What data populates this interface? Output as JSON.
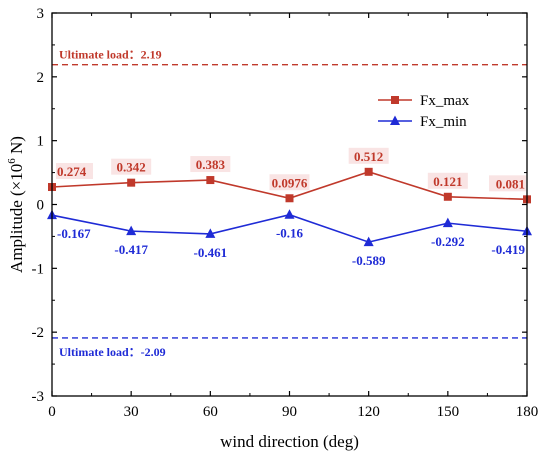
{
  "chart_data": {
    "type": "line",
    "xlabel": "wind direction (deg)",
    "ylabel_prefix": "Amplitude (×10",
    "ylabel_exp": "6",
    "ylabel_suffix": " N)",
    "xlim": [
      0,
      180
    ],
    "ylim": [
      -3,
      3
    ],
    "x": [
      0,
      30,
      60,
      90,
      120,
      150,
      180
    ],
    "xticks": [
      "0",
      "30",
      "60",
      "90",
      "120",
      "150",
      "180"
    ],
    "yticks": [
      "-3",
      "-2",
      "-1",
      "0",
      "1",
      "2",
      "3"
    ],
    "grid": false,
    "legend_position": "top-right",
    "series": [
      {
        "name": "Fx_max",
        "color": "#c0392b",
        "marker": "square",
        "values": [
          0.274,
          0.342,
          0.383,
          0.0976,
          0.512,
          0.121,
          0.081
        ],
        "labels": [
          "0.274",
          "0.342",
          "0.383",
          "0.0976",
          "0.512",
          "0.121",
          "0.081"
        ]
      },
      {
        "name": "Fx_min",
        "color": "#1f2bd6",
        "marker": "triangle",
        "values": [
          -0.167,
          -0.417,
          -0.461,
          -0.16,
          -0.589,
          -0.292,
          -0.419
        ],
        "labels": [
          "-0.167",
          "-0.417",
          "-0.461",
          "-0.16",
          "-0.589",
          "-0.292",
          "-0.419"
        ]
      }
    ],
    "reference_lines": [
      {
        "value": 2.19,
        "label": "Ultimate load：2.19",
        "color": "#c0392b",
        "style": "dashed"
      },
      {
        "value": -2.09,
        "label": "Ultimate load：-2.09",
        "color": "#1f2bd6",
        "style": "dashed"
      }
    ]
  }
}
